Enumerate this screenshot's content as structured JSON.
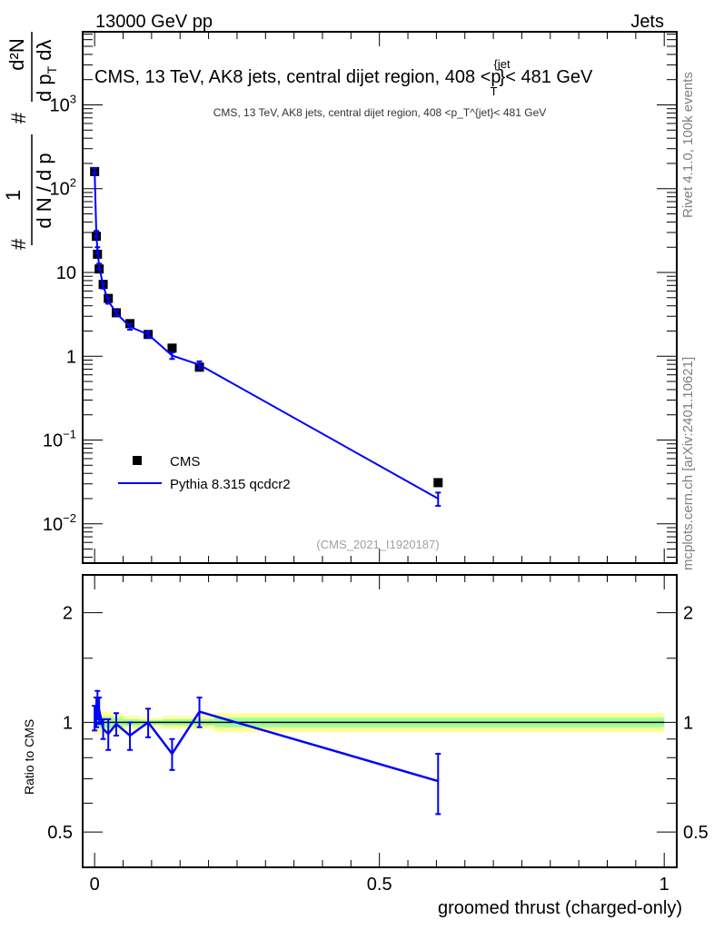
{
  "header": {
    "left": "13000 GeV pp",
    "right": "Jets"
  },
  "side_labels": {
    "rivet": "Rivet 4.1.0,  100k events",
    "mcplots": "mcplots.cern.ch [arXiv:2401.10621]"
  },
  "colors": {
    "data": "#000000",
    "mc": "#0000ff",
    "band_outer": "#ffff99",
    "band_inner": "#99ff99",
    "side_text": "#808080"
  },
  "chart_data": [
    {
      "type": "scatter",
      "title": "CMS, 13 TeV, AK8 jets, central dijet region, 408 <p_T^{jet}< 481 GeV",
      "title_parts": {
        "main": "CMS, 13 TeV, AK8 jets, central dijet region, 408 <p",
        "sup": "{jet",
        "sub": "T",
        "tail": "}< 481 GeV"
      },
      "ylabel_parts": {
        "hash": "#",
        "num1": "1",
        "den1": "d N / d p",
        "sub": "T",
        "num2": "d²N",
        "den2": "d p",
        "den2b": " dλ"
      },
      "yscale": "log",
      "xlim": [
        -0.021,
        1.022
      ],
      "ylim": [
        0.0034,
        7450
      ],
      "yticks": [
        {
          "v": 1000,
          "b": "10",
          "e": "3"
        },
        {
          "v": 100,
          "b": "10",
          "e": "2"
        },
        {
          "v": 10,
          "b": "10",
          "e": ""
        },
        {
          "v": 1,
          "b": "1",
          "e": ""
        },
        {
          "v": 0.1,
          "b": "10",
          "e": "−1"
        },
        {
          "v": 0.01,
          "b": "10",
          "e": "−2"
        }
      ],
      "annotation": "(CMS_2021_I1920187)",
      "legend": {
        "placement": "lower-left",
        "entries": [
          "CMS",
          "Pythia 8.315 qcdcr2"
        ]
      },
      "x": [
        0.0,
        0.003,
        0.005,
        0.008,
        0.015,
        0.024,
        0.038,
        0.062,
        0.094,
        0.136,
        0.184,
        0.603
      ],
      "series": [
        {
          "name": "CMS",
          "values": [
            160,
            27,
            16.5,
            11,
            7.2,
            4.9,
            3.3,
            2.45,
            1.82,
            1.25,
            0.74,
            0.031
          ]
        },
        {
          "name": "Pythia 8.315 qcdcr2",
          "values": [
            165,
            29,
            18.5,
            11.9,
            6.9,
            4.6,
            3.27,
            2.25,
            1.82,
            1.02,
            0.79,
            0.02
          ],
          "rel_err": [
            0.07,
            0.08,
            0.08,
            0.07,
            0.07,
            0.08,
            0.07,
            0.08,
            0.08,
            0.09,
            0.1,
            0.18
          ]
        }
      ]
    },
    {
      "type": "line",
      "ylabel": "Ratio to CMS",
      "xlabel": "groomed thrust (charged-only)",
      "yscale": "log",
      "xlim": [
        -0.021,
        1.022
      ],
      "ylim": [
        0.4,
        2.54
      ],
      "xticks": [
        {
          "v": 0,
          "l": "0"
        },
        {
          "v": 0.5,
          "l": "0.5"
        },
        {
          "v": 1,
          "l": "1"
        }
      ],
      "yticks": [
        {
          "v": 0.5,
          "l": "0.5"
        },
        {
          "v": 1,
          "l": "1"
        },
        {
          "v": 2,
          "l": "2"
        }
      ],
      "x": [
        0.0,
        0.003,
        0.005,
        0.008,
        0.015,
        0.024,
        0.038,
        0.062,
        0.094,
        0.136,
        0.184,
        0.603
      ],
      "ratio": [
        1.03,
        1.07,
        1.12,
        1.08,
        0.96,
        0.93,
        0.99,
        0.92,
        1.0,
        0.82,
        1.07,
        0.69
      ],
      "ratio_err": [
        0.08,
        0.1,
        0.1,
        0.09,
        0.06,
        0.09,
        0.07,
        0.08,
        0.09,
        0.08,
        0.1,
        0.13
      ],
      "band_edges": [
        0.0,
        0.03,
        0.05,
        0.08,
        0.12,
        0.21,
        1.0
      ],
      "band_outer": [
        0.07,
        0.06,
        0.04,
        0.03,
        0.04,
        0.06
      ],
      "band_inner": [
        0.035,
        0.03,
        0.02,
        0.015,
        0.02,
        0.03
      ]
    }
  ]
}
